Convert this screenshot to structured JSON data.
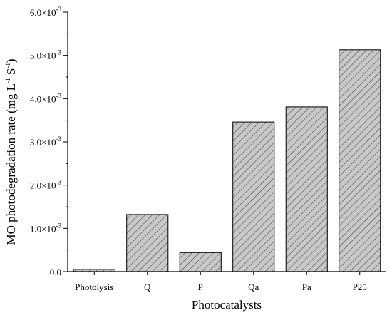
{
  "chart_data": {
    "type": "bar",
    "categories": [
      "Photolysis",
      "Q",
      "P",
      "Qa",
      "Pa",
      "P25"
    ],
    "values": [
      5e-05,
      0.00132,
      0.00044,
      0.00346,
      0.00381,
      0.00513
    ],
    "xlabel": "Photocatalysts",
    "ylabel": "MO photodegradation rate (mg L",
    "ylabel_exp1": "-1",
    "ylabel_mid": " S",
    "ylabel_exp2": "-1",
    "ylabel_end": ")",
    "ylim": [
      0,
      0.006
    ],
    "yticks": [
      {
        "value": 0,
        "mantissa": "0.0",
        "exp": ""
      },
      {
        "value": 0.001,
        "mantissa": "1.0×10",
        "exp": "-3"
      },
      {
        "value": 0.002,
        "mantissa": "2.0×10",
        "exp": "-3"
      },
      {
        "value": 0.003,
        "mantissa": "3.0×10",
        "exp": "-3"
      },
      {
        "value": 0.004,
        "mantissa": "4.0×10",
        "exp": "-3"
      },
      {
        "value": 0.005,
        "mantissa": "5.0×10",
        "exp": "-3"
      },
      {
        "value": 0.006,
        "mantissa": "6.0×10",
        "exp": "-3"
      }
    ],
    "bar_fill": "#c8c8c8",
    "bar_hatch_color": "#4a4a4a",
    "grid": false
  }
}
